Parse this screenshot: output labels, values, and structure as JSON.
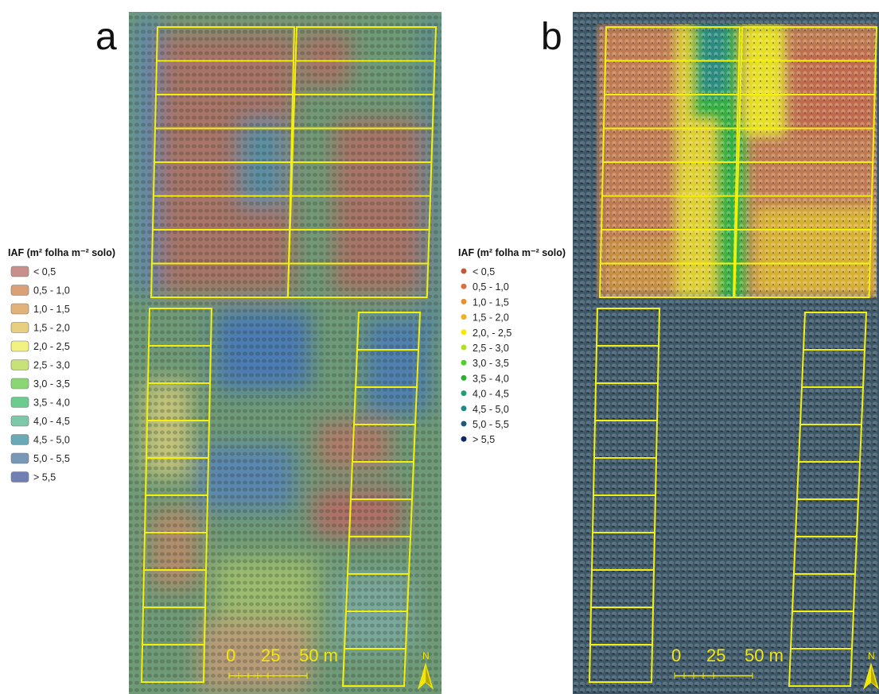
{
  "panels": [
    {
      "label": "a",
      "legend": {
        "title": "IAF (m² folha m⁻² solo)",
        "items": [
          {
            "label": "< 0,5",
            "color": "#c98f8a"
          },
          {
            "label": "0,5 - 1,0",
            "color": "#d9a07a"
          },
          {
            "label": "1,0 - 1,5",
            "color": "#e2b27a"
          },
          {
            "label": "1,5 - 2,0",
            "color": "#e8cf80"
          },
          {
            "label": "2,0 - 2,5",
            "color": "#f2f282"
          },
          {
            "label": "2,5 - 3,0",
            "color": "#c8e27a"
          },
          {
            "label": "3,0 - 3,5",
            "color": "#8ad674"
          },
          {
            "label": "3,5 - 4,0",
            "color": "#6ccc90"
          },
          {
            "label": "4,0 - 4,5",
            "color": "#7cc8a8"
          },
          {
            "label": "4,5 - 5,0",
            "color": "#6aaab6"
          },
          {
            "label": "5,0 - 5,5",
            "color": "#7898b8"
          },
          {
            "label": "> 5,5",
            "color": "#7080b4"
          }
        ]
      },
      "scale_bar": [
        "0",
        "25",
        "50 m"
      ],
      "north": "N"
    },
    {
      "label": "b",
      "legend": {
        "title": "IAF (m² folha m⁻² solo)",
        "items": [
          {
            "label": "< 0,5",
            "color": "#c0583c"
          },
          {
            "label": "0,5 - 1,0",
            "color": "#d87040"
          },
          {
            "label": "1,0 - 1,5",
            "color": "#e89030"
          },
          {
            "label": "1,5 - 2,0",
            "color": "#f0b020"
          },
          {
            "label": "2,0, - 2,5",
            "color": "#f8e800"
          },
          {
            "label": "2,5 - 3,0",
            "color": "#b0e020"
          },
          {
            "label": "3,0 - 3,5",
            "color": "#50d020"
          },
          {
            "label": "3,5 - 4,0",
            "color": "#30b030"
          },
          {
            "label": "4,0 - 4,5",
            "color": "#20a070"
          },
          {
            "label": "4,5 - 5,0",
            "color": "#208888"
          },
          {
            "label": "5,0 - 5,5",
            "color": "#205878"
          },
          {
            "label": "> 5,5",
            "color": "#102860"
          }
        ]
      },
      "scale_bar": [
        "0",
        "25",
        "50 m"
      ],
      "north": "N"
    }
  ]
}
